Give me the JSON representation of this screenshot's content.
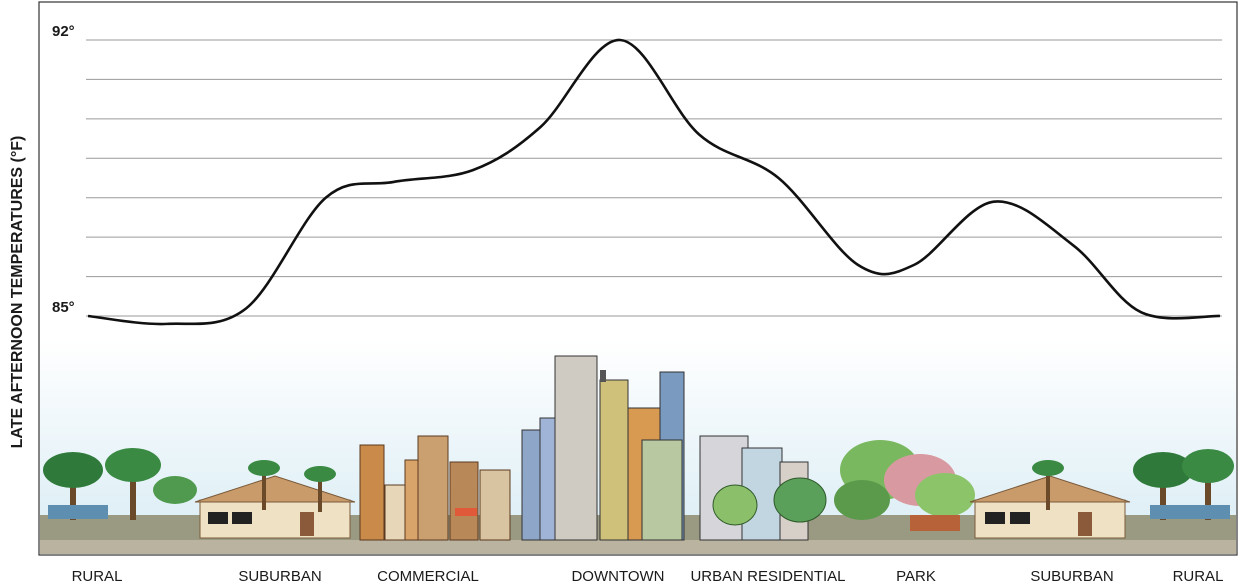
{
  "chart_data": {
    "type": "line",
    "title": "",
    "ylabel": "LATE AFTERNOON TEMPERATURES (°F)",
    "xlabel": "",
    "ylim": [
      85,
      92
    ],
    "yticks": [
      {
        "value": 92,
        "label": "92°"
      },
      {
        "value": 85,
        "label": "85°"
      }
    ],
    "grid": true,
    "categories": [
      "RURAL",
      "SUBURBAN",
      "COMMERCIAL",
      "DOWNTOWN",
      "URBAN RESIDENTIAL",
      "PARK",
      "SUBURBAN",
      "RURAL"
    ],
    "series": [
      {
        "name": "",
        "color": "#111111",
        "points": [
          [
            0.0,
            85.0
          ],
          [
            0.07,
            84.8
          ],
          [
            0.14,
            85.2
          ],
          [
            0.21,
            88.0
          ],
          [
            0.27,
            88.4
          ],
          [
            0.34,
            88.7
          ],
          [
            0.4,
            89.8
          ],
          [
            0.47,
            92.0
          ],
          [
            0.54,
            89.6
          ],
          [
            0.61,
            88.5
          ],
          [
            0.68,
            86.3
          ],
          [
            0.73,
            86.3
          ],
          [
            0.8,
            87.9
          ],
          [
            0.87,
            86.8
          ],
          [
            0.93,
            85.1
          ],
          [
            1.0,
            85.0
          ]
        ]
      }
    ]
  }
}
